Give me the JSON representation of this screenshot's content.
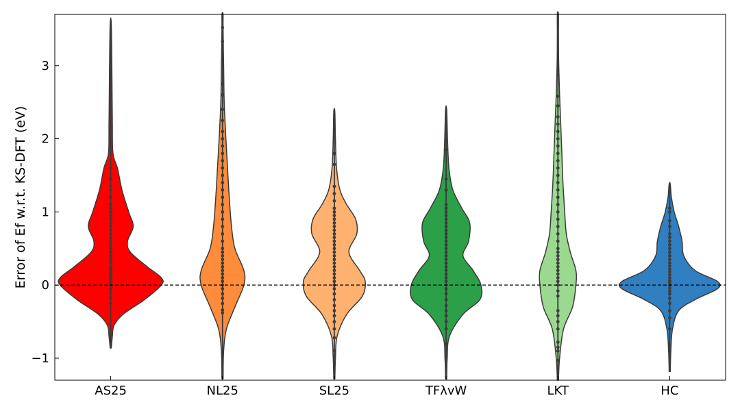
{
  "chart_data": {
    "type": "violin",
    "ylabel": "Error of Ef w.r.t. KS-DFT (eV)",
    "ylim": [
      -1.3,
      3.7
    ],
    "yticks": [
      {
        "value": -1,
        "label": "−1"
      },
      {
        "value": 0,
        "label": "0"
      },
      {
        "value": 1,
        "label": "1"
      },
      {
        "value": 2,
        "label": "2"
      },
      {
        "value": 3,
        "label": "3"
      }
    ],
    "reference_line": {
      "y": 0,
      "style": "dashed",
      "color": "#000000"
    },
    "grid": false,
    "categories": [
      "AS25",
      "NL25",
      "SL25",
      "TFλvW",
      "LKT",
      "HC"
    ],
    "series": [
      {
        "category": "AS25",
        "color": "#ff0000",
        "range": [
          -0.86,
          3.58
        ],
        "profile": [
          [
            -0.86,
            0.01
          ],
          [
            -0.7,
            0.03
          ],
          [
            -0.55,
            0.06
          ],
          [
            -0.4,
            0.22
          ],
          [
            -0.2,
            0.6
          ],
          [
            0.0,
            0.9
          ],
          [
            0.1,
            0.9
          ],
          [
            0.25,
            0.65
          ],
          [
            0.45,
            0.35
          ],
          [
            0.6,
            0.3
          ],
          [
            0.8,
            0.4
          ],
          [
            1.0,
            0.32
          ],
          [
            1.3,
            0.2
          ],
          [
            1.6,
            0.12
          ],
          [
            1.8,
            0.04
          ],
          [
            2.2,
            0.03
          ],
          [
            2.6,
            0.025
          ],
          [
            3.0,
            0.02
          ],
          [
            3.58,
            0.01
          ]
        ],
        "points": [
          -0.25,
          -0.18,
          -0.1,
          -0.05,
          0.0,
          0.02,
          0.05,
          0.08,
          0.1,
          0.12,
          0.15,
          0.18,
          0.2,
          0.22,
          0.25,
          0.3,
          0.35,
          0.4,
          0.45,
          0.5,
          0.55,
          0.6,
          0.65,
          0.7,
          0.75,
          0.8,
          0.85,
          0.9,
          0.95,
          1.0,
          1.05,
          1.1,
          1.2,
          1.3,
          1.35,
          1.45,
          1.6,
          2.58,
          2.97
        ]
      },
      {
        "category": "NL25",
        "color": "#ff8c3a",
        "range": [
          -1.28,
          3.7
        ],
        "profile": [
          [
            -1.28,
            0.01
          ],
          [
            -0.9,
            0.02
          ],
          [
            -0.6,
            0.07
          ],
          [
            -0.3,
            0.22
          ],
          [
            0.0,
            0.38
          ],
          [
            0.2,
            0.38
          ],
          [
            0.5,
            0.22
          ],
          [
            0.8,
            0.16
          ],
          [
            1.2,
            0.12
          ],
          [
            1.6,
            0.09
          ],
          [
            2.0,
            0.06
          ],
          [
            2.5,
            0.03
          ],
          [
            3.0,
            0.02
          ],
          [
            3.5,
            0.01
          ],
          [
            3.7,
            0.01
          ]
        ],
        "points": [
          -0.38,
          -0.34,
          -0.25,
          -0.18,
          -0.12,
          -0.05,
          0.0,
          0.05,
          0.1,
          0.15,
          0.2,
          0.25,
          0.3,
          0.35,
          0.4,
          0.45,
          0.5,
          0.6,
          0.7,
          0.8,
          0.9,
          1.0,
          1.1,
          1.2,
          1.3,
          1.4,
          1.5,
          1.6,
          1.7,
          1.8,
          1.9,
          2.0,
          2.1,
          2.25,
          2.4,
          2.6,
          2.75,
          3.05,
          3.33,
          3.52
        ]
      },
      {
        "category": "SL25",
        "color": "#ffb170",
        "range": [
          -1.28,
          2.37
        ],
        "profile": [
          [
            -1.28,
            0.01
          ],
          [
            -1.0,
            0.02
          ],
          [
            -0.7,
            0.05
          ],
          [
            -0.4,
            0.22
          ],
          [
            -0.15,
            0.5
          ],
          [
            0.05,
            0.55
          ],
          [
            0.2,
            0.45
          ],
          [
            0.45,
            0.26
          ],
          [
            0.7,
            0.4
          ],
          [
            0.9,
            0.38
          ],
          [
            1.1,
            0.22
          ],
          [
            1.3,
            0.1
          ],
          [
            1.6,
            0.04
          ],
          [
            2.0,
            0.02
          ],
          [
            2.37,
            0.01
          ]
        ],
        "points": [
          -0.97,
          -0.9,
          -0.72,
          -0.6,
          -0.5,
          -0.42,
          -0.35,
          -0.28,
          -0.2,
          -0.12,
          -0.05,
          0.0,
          0.05,
          0.1,
          0.15,
          0.2,
          0.25,
          0.3,
          0.35,
          0.4,
          0.45,
          0.5,
          0.55,
          0.6,
          0.65,
          0.7,
          0.75,
          0.8,
          0.85,
          0.9,
          0.95,
          1.0,
          1.05,
          1.15,
          1.25,
          1.35,
          1.65,
          1.8
        ]
      },
      {
        "category": "TFλvW",
        "color": "#2ca048",
        "range": [
          -1.28,
          2.4
        ],
        "profile": [
          [
            -1.28,
            0.01
          ],
          [
            -1.0,
            0.02
          ],
          [
            -0.7,
            0.06
          ],
          [
            -0.4,
            0.3
          ],
          [
            -0.2,
            0.6
          ],
          [
            0.0,
            0.62
          ],
          [
            0.2,
            0.48
          ],
          [
            0.4,
            0.3
          ],
          [
            0.6,
            0.4
          ],
          [
            0.85,
            0.42
          ],
          [
            1.05,
            0.28
          ],
          [
            1.3,
            0.12
          ],
          [
            1.6,
            0.05
          ],
          [
            2.0,
            0.025
          ],
          [
            2.4,
            0.01
          ]
        ],
        "points": [
          -0.8,
          -0.6,
          -0.5,
          -0.42,
          -0.35,
          -0.28,
          -0.2,
          -0.12,
          -0.05,
          0.0,
          0.05,
          0.1,
          0.15,
          0.2,
          0.25,
          0.3,
          0.35,
          0.4,
          0.45,
          0.5,
          0.55,
          0.6,
          0.65,
          0.7,
          0.75,
          0.8,
          0.85,
          0.9,
          0.95,
          1.0,
          1.05,
          1.1,
          1.3,
          1.45,
          1.85
        ]
      },
      {
        "category": "LKT",
        "color": "#9ad98f",
        "range": [
          -1.3,
          3.7
        ],
        "profile": [
          [
            -1.3,
            0.01
          ],
          [
            -1.0,
            0.03
          ],
          [
            -0.6,
            0.1
          ],
          [
            -0.3,
            0.26
          ],
          [
            0.0,
            0.32
          ],
          [
            0.2,
            0.32
          ],
          [
            0.45,
            0.22
          ],
          [
            0.7,
            0.15
          ],
          [
            1.0,
            0.12
          ],
          [
            1.4,
            0.09
          ],
          [
            1.8,
            0.07
          ],
          [
            2.2,
            0.05
          ],
          [
            2.6,
            0.03
          ],
          [
            3.0,
            0.015
          ],
          [
            3.4,
            0.01
          ],
          [
            3.7,
            0.01
          ]
        ],
        "points": [
          -1.03,
          -0.9,
          -0.85,
          -0.78,
          -0.6,
          -0.5,
          -0.42,
          -0.35,
          -0.15,
          -0.08,
          0.0,
          0.05,
          0.1,
          0.15,
          0.2,
          0.25,
          0.3,
          0.35,
          0.4,
          0.45,
          0.5,
          0.6,
          0.7,
          0.8,
          0.9,
          1.0,
          1.1,
          1.2,
          1.3,
          1.4,
          1.5,
          1.6,
          1.7,
          1.8,
          1.9,
          2.0,
          2.1,
          2.2,
          2.3,
          2.45,
          2.58,
          2.87
        ]
      },
      {
        "category": "HC",
        "color": "#2f7fc1",
        "range": [
          -1.18,
          1.38
        ],
        "profile": [
          [
            -1.18,
            0.01
          ],
          [
            -0.9,
            0.02
          ],
          [
            -0.6,
            0.05
          ],
          [
            -0.35,
            0.16
          ],
          [
            -0.2,
            0.45
          ],
          [
            -0.05,
            0.85
          ],
          [
            0.05,
            0.85
          ],
          [
            0.2,
            0.45
          ],
          [
            0.4,
            0.25
          ],
          [
            0.6,
            0.22
          ],
          [
            0.8,
            0.16
          ],
          [
            1.0,
            0.08
          ],
          [
            1.2,
            0.03
          ],
          [
            1.38,
            0.01
          ]
        ],
        "points": [
          -0.82,
          -0.6,
          -0.45,
          -0.35,
          -0.25,
          -0.18,
          -0.12,
          -0.08,
          -0.04,
          0.0,
          0.03,
          0.06,
          0.1,
          0.14,
          0.18,
          0.22,
          0.26,
          0.3,
          0.35,
          0.4,
          0.45,
          0.5,
          0.55,
          0.6,
          0.65,
          0.7,
          0.8,
          0.88,
          1.0,
          1.05
        ]
      }
    ]
  }
}
